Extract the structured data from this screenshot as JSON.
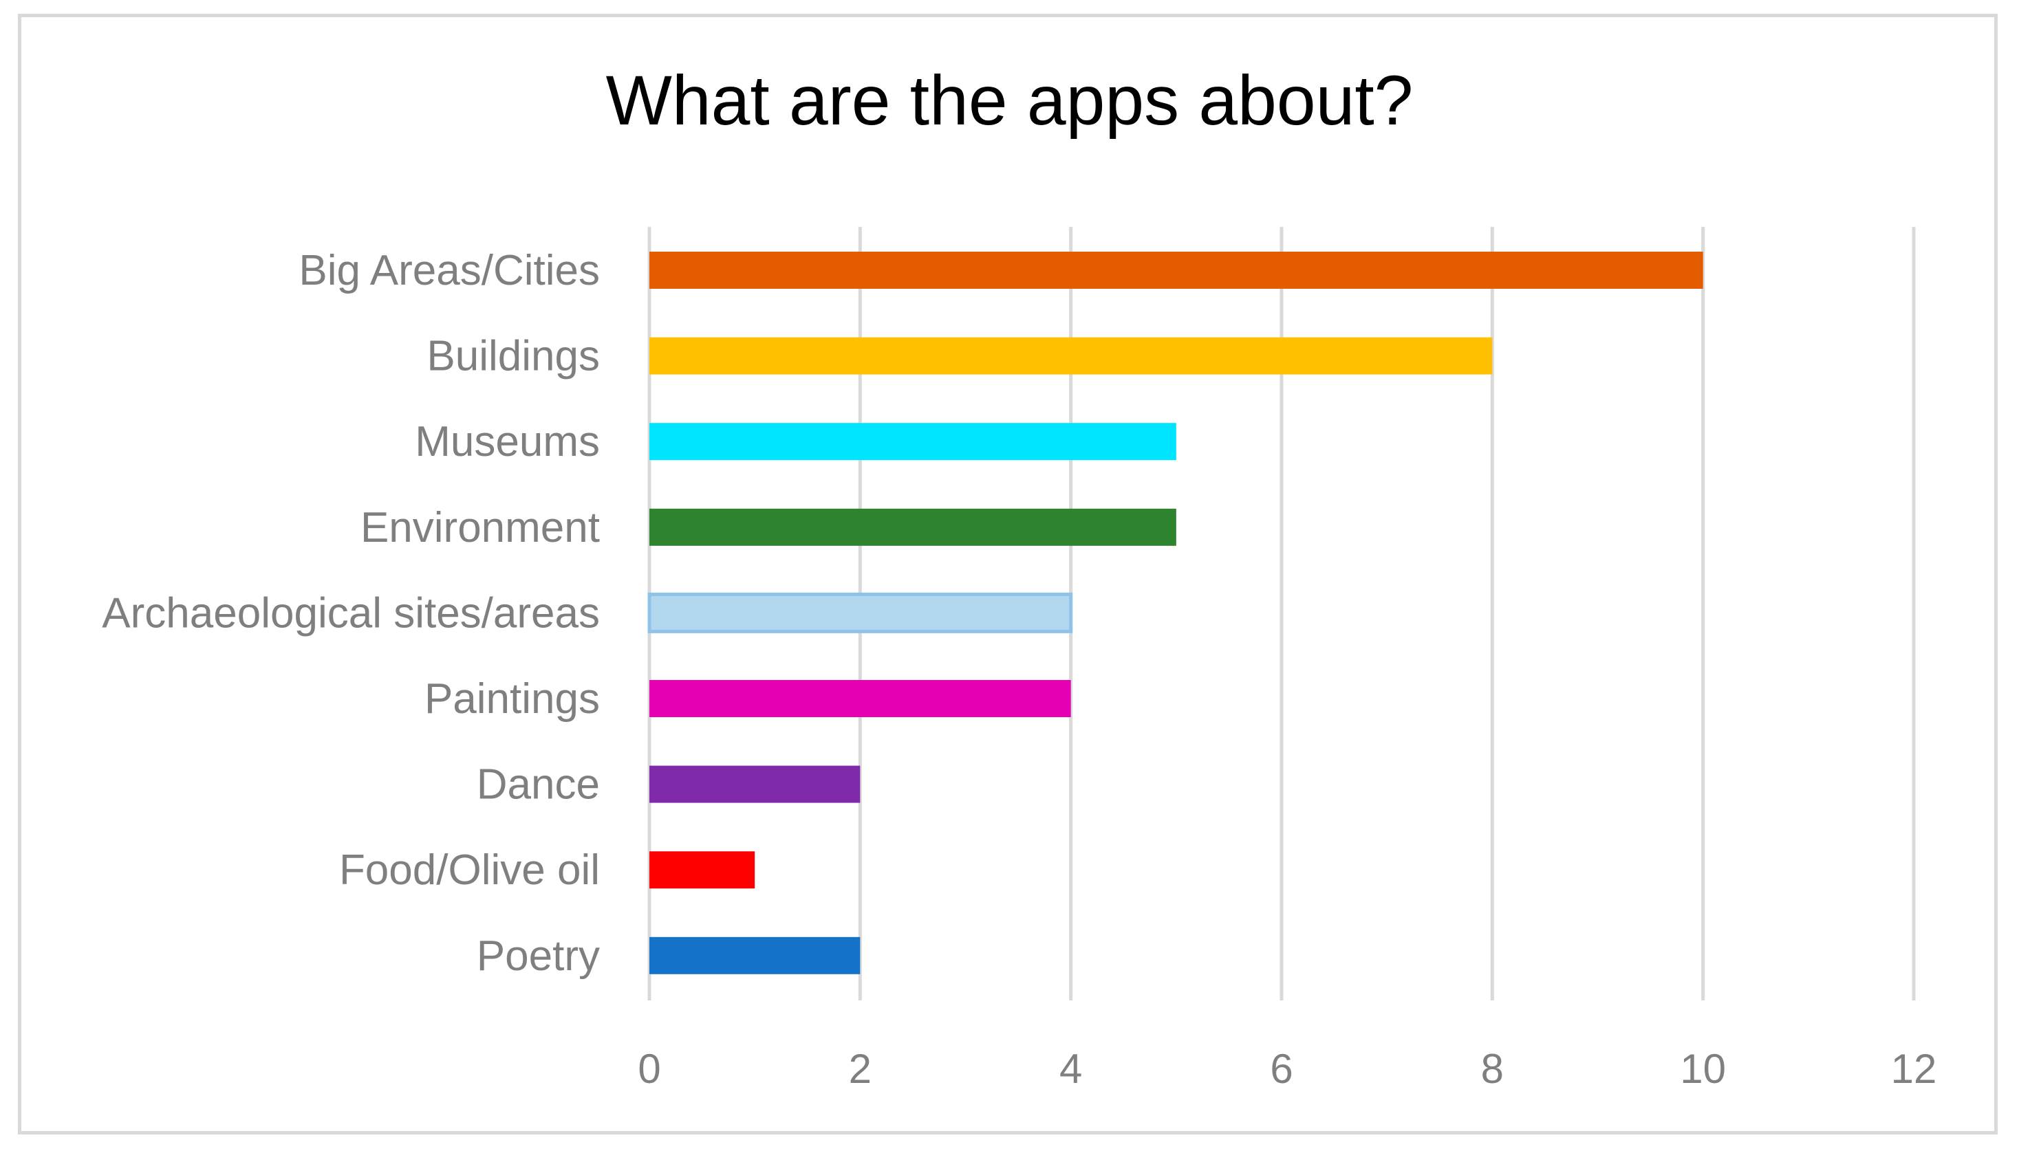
{
  "chart_data": {
    "type": "bar",
    "orientation": "horizontal",
    "title": "What are the apps about?",
    "xlabel": "",
    "ylabel": "",
    "categories": [
      "Big Areas/Cities",
      "Buildings",
      "Museums",
      "Environment",
      "Archaeological sites/areas",
      "Paintings",
      "Dance",
      "Food/Olive oil",
      "Poetry"
    ],
    "values": [
      10,
      8,
      5,
      5,
      4,
      4,
      2,
      1,
      2
    ],
    "colors": [
      "#e35d00",
      "#ffc000",
      "#00e5ff",
      "#2e842e",
      "#b4d7f0",
      "#e600b4",
      "#7f2aa8",
      "#ff0000",
      "#1472c8"
    ],
    "bar_outline_colors": [
      "",
      "",
      "",
      "",
      "#8ec2e8",
      "",
      "",
      "",
      ""
    ],
    "xlim": [
      0,
      12
    ],
    "xticks": [
      0,
      2,
      4,
      6,
      8,
      10,
      12
    ],
    "grid": "vertical",
    "grid_color": "#d9d9d9",
    "legend": "none"
  }
}
